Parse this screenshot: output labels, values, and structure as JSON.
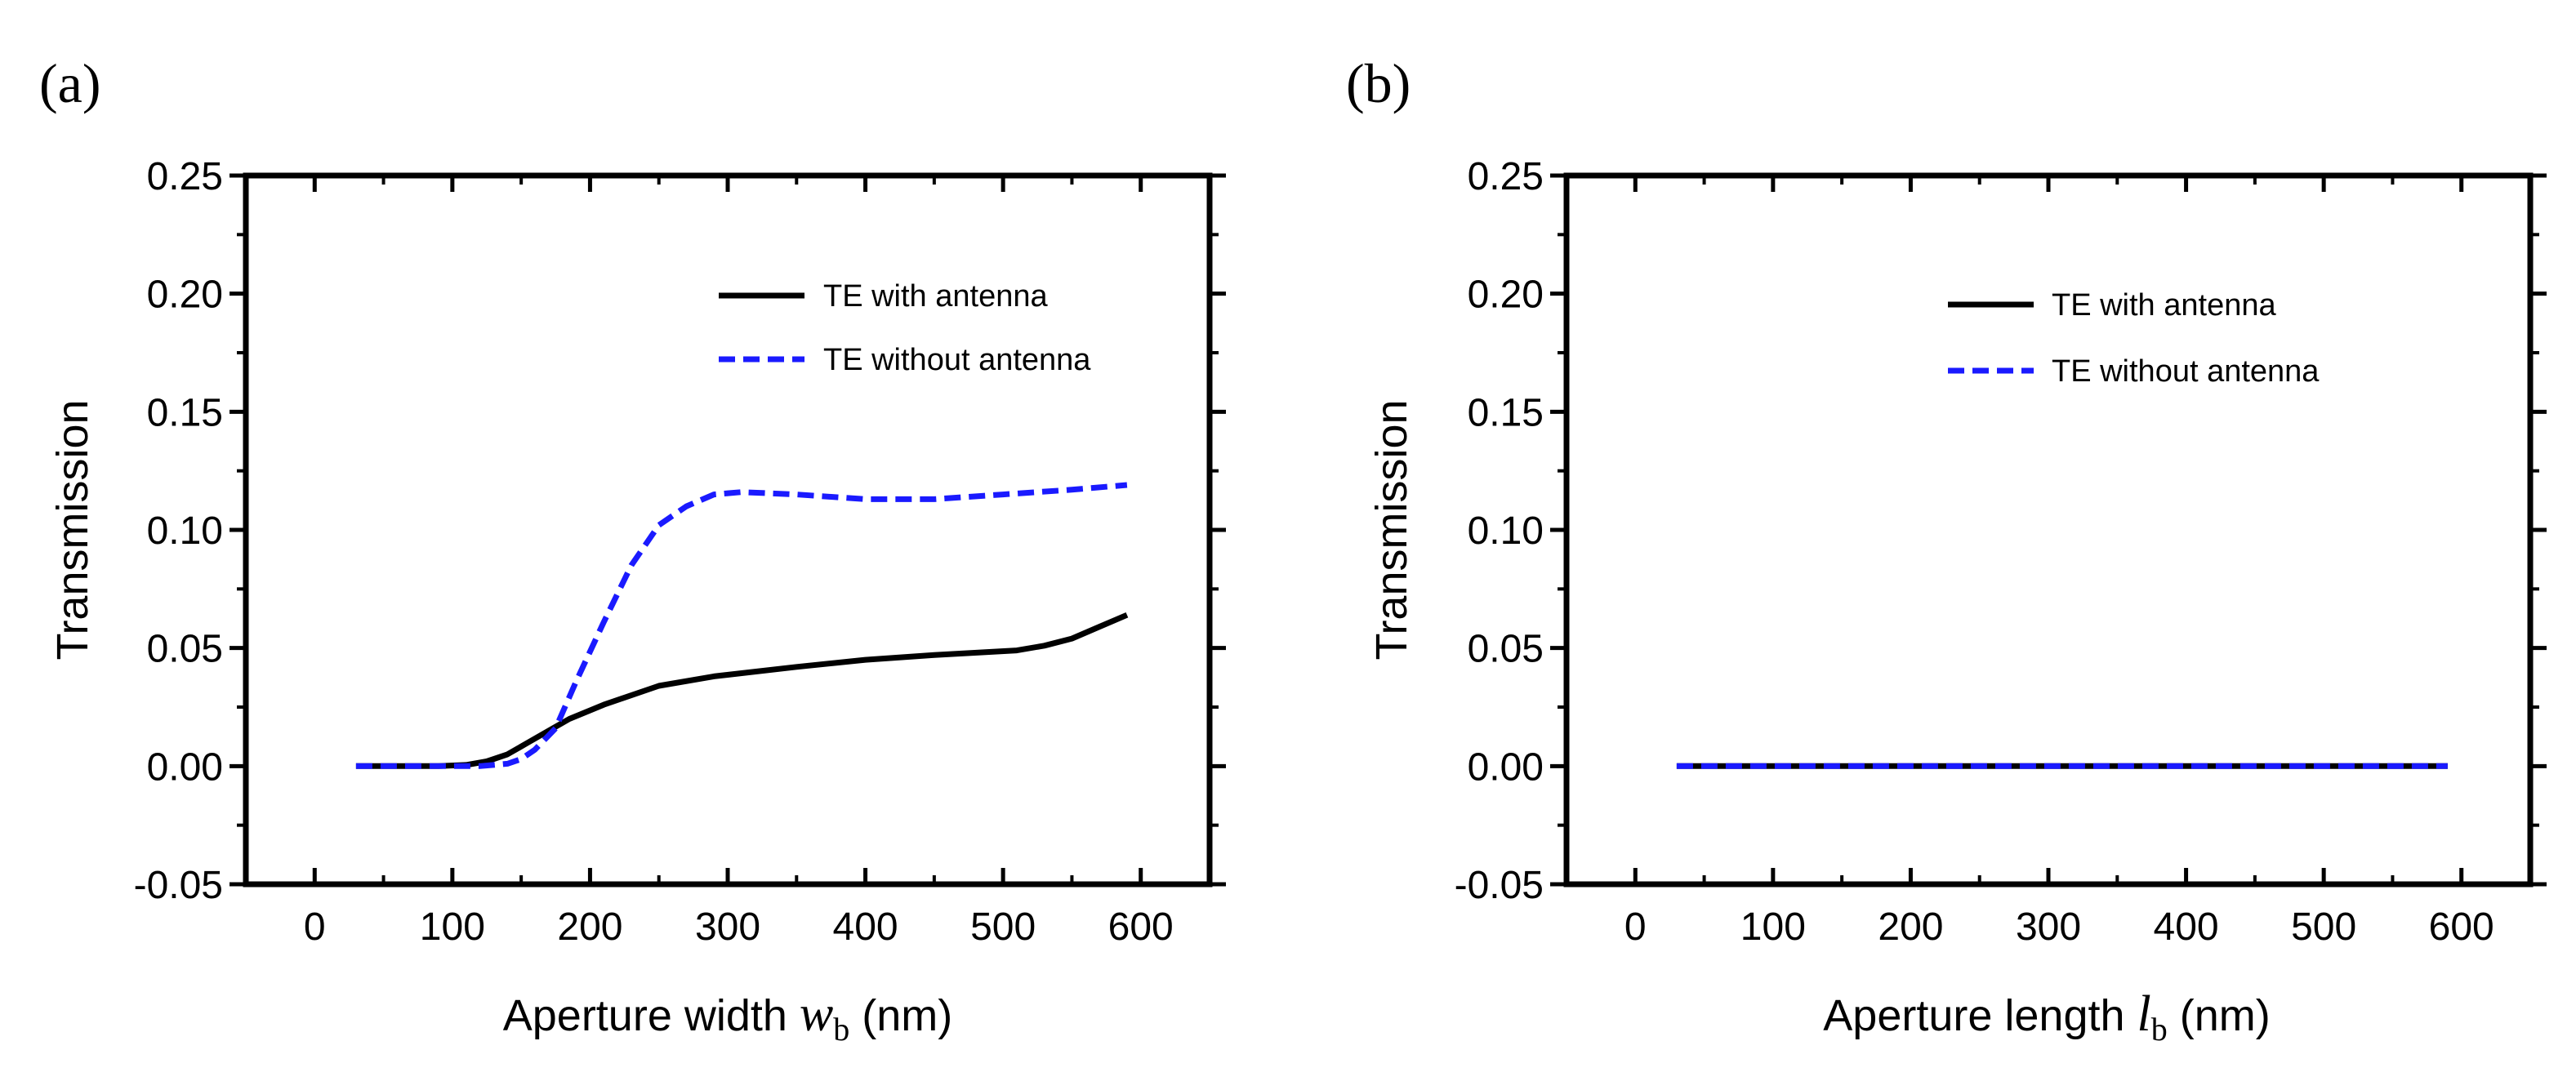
{
  "colors": {
    "with_antenna": "#000000",
    "without_antenna": "#1a1aff"
  },
  "chart_data": [
    {
      "type": "line",
      "panel_label": "(a)",
      "xlabel_prefix": "Aperture width ",
      "xlabel_var": "w",
      "xlabel_sub": "b",
      "xlabel_suffix": " (nm)",
      "ylabel": "Transmission",
      "xlim": [
        -50,
        650
      ],
      "ylim": [
        -0.05,
        0.25
      ],
      "xticks": [
        0,
        100,
        200,
        300,
        400,
        500,
        600
      ],
      "xtick_labels": [
        "0",
        "100",
        "200",
        "300",
        "400",
        "500",
        "600"
      ],
      "yticks": [
        -0.05,
        0,
        0.05,
        0.1,
        0.15,
        0.2,
        0.25
      ],
      "ytick_labels": [
        "-0.05",
        "0.00",
        "0.05",
        "0.10",
        "0.15",
        "0.20",
        "0.25"
      ],
      "legend_position": "top-right",
      "series": [
        {
          "name": "TE with antenna",
          "style": "solid",
          "x": [
            30,
            60,
            90,
            110,
            125,
            140,
            155,
            170,
            185,
            210,
            250,
            290,
            350,
            400,
            450,
            510,
            530,
            550,
            570,
            590
          ],
          "y": [
            0.0,
            0.0,
            0.0,
            0.0005,
            0.002,
            0.005,
            0.01,
            0.015,
            0.02,
            0.026,
            0.034,
            0.038,
            0.042,
            0.045,
            0.047,
            0.049,
            0.051,
            0.054,
            0.059,
            0.064
          ]
        },
        {
          "name": "TE without antenna",
          "style": "dashed",
          "x": [
            30,
            60,
            90,
            120,
            140,
            150,
            160,
            175,
            190,
            210,
            230,
            250,
            270,
            290,
            310,
            350,
            400,
            450,
            500,
            550,
            590
          ],
          "y": [
            0.0,
            0.0,
            0.0,
            0.0,
            0.001,
            0.003,
            0.007,
            0.016,
            0.036,
            0.061,
            0.085,
            0.102,
            0.11,
            0.115,
            0.116,
            0.115,
            0.113,
            0.113,
            0.115,
            0.117,
            0.119
          ]
        }
      ]
    },
    {
      "type": "line",
      "panel_label": "(b)",
      "xlabel_prefix": "Aperture length ",
      "xlabel_var": "l",
      "xlabel_sub": "b",
      "xlabel_suffix": " (nm)",
      "ylabel": "Transmission",
      "xlim": [
        -50,
        650
      ],
      "ylim": [
        -0.05,
        0.25
      ],
      "xticks": [
        0,
        100,
        200,
        300,
        400,
        500,
        600
      ],
      "xtick_labels": [
        "0",
        "100",
        "200",
        "300",
        "400",
        "500",
        "600"
      ],
      "yticks": [
        -0.05,
        0,
        0.05,
        0.1,
        0.15,
        0.2,
        0.25
      ],
      "ytick_labels": [
        "-0.05",
        "0.00",
        "0.05",
        "0.10",
        "0.15",
        "0.20",
        "0.25"
      ],
      "legend_position": "top-right",
      "series": [
        {
          "name": "TE with antenna",
          "style": "solid",
          "x": [
            30,
            590
          ],
          "y": [
            0.0,
            0.0
          ]
        },
        {
          "name": "TE without antenna",
          "style": "dashed",
          "x": [
            30,
            590
          ],
          "y": [
            0.0,
            0.0
          ]
        }
      ]
    }
  ]
}
